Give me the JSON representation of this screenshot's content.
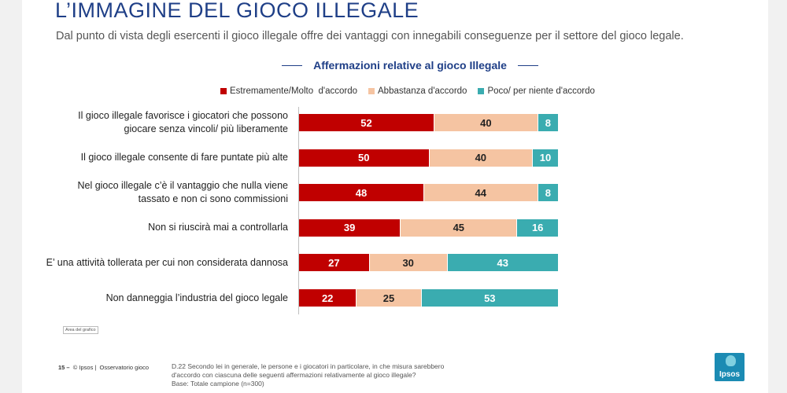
{
  "slide": {
    "title": "L’IMMAGINE DEL GIOCO ILLEGALE",
    "subtitle": "Dal punto di vista degli esercenti il gioco illegale offre dei vantaggi con innegabili conseguenze per il settore del gioco legale."
  },
  "chart_data": {
    "type": "bar",
    "orientation": "horizontal",
    "stacked": true,
    "title": "Affermazioni relative al gioco Illegale",
    "legend_position": "top",
    "categories": [
      "Il gioco illegale favorisce i giocatori che possono giocare senza vincoli/ più liberamente",
      "Il gioco illegale consente di fare puntate più alte",
      "Nel gioco illegale c’è il vantaggio che nulla viene tassato e non ci sono commissioni",
      "Non si riuscirà mai a controllarla",
      "E’ una attività tollerata per cui non considerata dannosa",
      "Non danneggia l’industria del gioco legale"
    ],
    "series": [
      {
        "name": "Estremamente/Molto  d'accordo",
        "color": "#c00000",
        "values": [
          52,
          50,
          48,
          39,
          27,
          22
        ]
      },
      {
        "name": "Abbastanza d'accordo",
        "color": "#f5c4a2",
        "values": [
          40,
          40,
          44,
          45,
          30,
          25
        ]
      },
      {
        "name": "Poco/ per niente d'accordo",
        "color": "#3aacb0",
        "values": [
          8,
          10,
          8,
          16,
          43,
          53
        ]
      }
    ],
    "xlim": [
      0,
      100
    ],
    "grid": false
  },
  "chart_area_label": "Area del grafico",
  "footer": {
    "page": "15 –",
    "copyright": "© Ipsos",
    "separator": "|",
    "study": "Osservatorio gioco",
    "note_line1": "D.22 Secondo lei in generale, le persone e i giocatori in particolare, in che misura sarebbero",
    "note_line2": "d'accordo con ciascuna delle seguenti affermazioni relativamente al gioco illegale?",
    "note_line3": "Base: Totale campione (n=300)"
  },
  "logo": {
    "text": "Ipsos"
  }
}
